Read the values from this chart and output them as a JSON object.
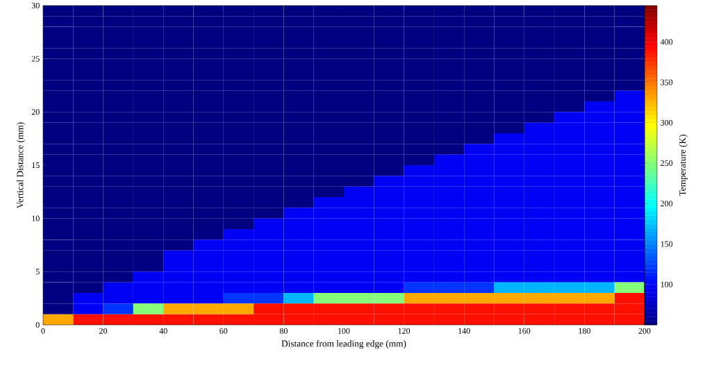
{
  "chart_data": {
    "type": "heatmap",
    "xlabel": "Distance from leading edge (mm)",
    "ylabel": "Vertical Distance (mm)",
    "clabel": "Temperature (K)",
    "x": [
      5,
      15,
      25,
      35,
      45,
      55,
      65,
      75,
      85,
      95,
      105,
      115,
      125,
      135,
      145,
      155,
      165,
      175,
      185,
      195
    ],
    "y": [
      29.5,
      28.5,
      27.5,
      26.5,
      25.5,
      24.5,
      23.5,
      22.5,
      21.5,
      20.5,
      19.5,
      18.5,
      17.5,
      16.5,
      15.5,
      14.5,
      13.5,
      12.5,
      11.5,
      10.5,
      9.5,
      8.5,
      7.5,
      6.5,
      5.5,
      4.5,
      3.5,
      2.5,
      1.5,
      0.5
    ],
    "xlim": [
      0,
      200
    ],
    "ylim": [
      0,
      30
    ],
    "xticks": [
      0,
      20,
      40,
      60,
      80,
      100,
      120,
      140,
      160,
      180,
      200
    ],
    "yticks": [
      0,
      5,
      10,
      15,
      20,
      25,
      30
    ],
    "clim": [
      50,
      445
    ],
    "cticks": [
      100,
      150,
      200,
      250,
      300,
      350,
      400
    ],
    "cells": [
      [
        50,
        50,
        50,
        50,
        50,
        50,
        50,
        50,
        50,
        50,
        50,
        50,
        50,
        50,
        50,
        50,
        50,
        50,
        50,
        50
      ],
      [
        50,
        50,
        50,
        50,
        50,
        50,
        50,
        50,
        50,
        50,
        50,
        50,
        50,
        50,
        50,
        50,
        50,
        50,
        50,
        50
      ],
      [
        50,
        50,
        50,
        50,
        50,
        50,
        50,
        50,
        50,
        50,
        50,
        50,
        50,
        50,
        50,
        50,
        50,
        50,
        50,
        50
      ],
      [
        50,
        50,
        50,
        50,
        50,
        50,
        50,
        50,
        50,
        50,
        50,
        50,
        50,
        50,
        50,
        50,
        50,
        50,
        50,
        50
      ],
      [
        50,
        50,
        50,
        50,
        50,
        50,
        50,
        50,
        50,
        50,
        50,
        50,
        50,
        50,
        50,
        50,
        50,
        50,
        50,
        50
      ],
      [
        50,
        50,
        50,
        50,
        50,
        50,
        50,
        50,
        50,
        50,
        50,
        50,
        50,
        50,
        50,
        50,
        50,
        50,
        50,
        50
      ],
      [
        50,
        50,
        50,
        50,
        50,
        50,
        50,
        50,
        50,
        50,
        50,
        50,
        50,
        50,
        50,
        50,
        50,
        50,
        50,
        50
      ],
      [
        50,
        50,
        50,
        50,
        50,
        50,
        50,
        50,
        50,
        50,
        50,
        50,
        50,
        50,
        50,
        50,
        50,
        50,
        50,
        50
      ],
      [
        50,
        50,
        50,
        50,
        50,
        50,
        50,
        50,
        50,
        50,
        50,
        50,
        50,
        50,
        50,
        50,
        50,
        50,
        50,
        95
      ],
      [
        50,
        50,
        50,
        50,
        50,
        50,
        50,
        50,
        50,
        50,
        50,
        50,
        50,
        50,
        50,
        50,
        50,
        50,
        95,
        95
      ],
      [
        50,
        50,
        50,
        50,
        50,
        50,
        50,
        50,
        50,
        50,
        50,
        50,
        50,
        50,
        50,
        50,
        50,
        95,
        95,
        95
      ],
      [
        50,
        50,
        50,
        50,
        50,
        50,
        50,
        50,
        50,
        50,
        50,
        50,
        50,
        50,
        50,
        50,
        95,
        95,
        95,
        95
      ],
      [
        50,
        50,
        50,
        50,
        50,
        50,
        50,
        50,
        50,
        50,
        50,
        50,
        50,
        50,
        50,
        95,
        95,
        95,
        95,
        95
      ],
      [
        50,
        50,
        50,
        50,
        50,
        50,
        50,
        50,
        50,
        50,
        50,
        50,
        50,
        50,
        95,
        95,
        95,
        95,
        95,
        95
      ],
      [
        50,
        50,
        50,
        50,
        50,
        50,
        50,
        50,
        50,
        50,
        50,
        50,
        50,
        95,
        95,
        95,
        95,
        95,
        95,
        95
      ],
      [
        50,
        50,
        50,
        50,
        50,
        50,
        50,
        50,
        50,
        50,
        50,
        50,
        95,
        95,
        95,
        95,
        95,
        95,
        95,
        95
      ],
      [
        50,
        50,
        50,
        50,
        50,
        50,
        50,
        50,
        50,
        50,
        50,
        95,
        95,
        95,
        95,
        95,
        95,
        95,
        95,
        95
      ],
      [
        50,
        50,
        50,
        50,
        50,
        50,
        50,
        50,
        50,
        50,
        95,
        95,
        95,
        95,
        95,
        95,
        95,
        95,
        95,
        95
      ],
      [
        50,
        50,
        50,
        50,
        50,
        50,
        50,
        50,
        50,
        95,
        95,
        95,
        95,
        95,
        95,
        95,
        95,
        95,
        95,
        95
      ],
      [
        50,
        50,
        50,
        50,
        50,
        50,
        50,
        50,
        95,
        95,
        95,
        95,
        95,
        95,
        95,
        95,
        95,
        95,
        95,
        95
      ],
      [
        50,
        50,
        50,
        50,
        50,
        50,
        50,
        95,
        95,
        95,
        95,
        95,
        95,
        95,
        95,
        95,
        95,
        95,
        95,
        95
      ],
      [
        50,
        50,
        50,
        50,
        50,
        50,
        95,
        95,
        95,
        95,
        95,
        95,
        95,
        95,
        95,
        95,
        95,
        95,
        95,
        95
      ],
      [
        50,
        50,
        50,
        50,
        50,
        95,
        95,
        95,
        95,
        95,
        95,
        95,
        95,
        95,
        95,
        95,
        95,
        95,
        95,
        95
      ],
      [
        50,
        50,
        50,
        50,
        95,
        95,
        95,
        95,
        95,
        95,
        95,
        95,
        95,
        95,
        95,
        95,
        95,
        95,
        95,
        95
      ],
      [
        50,
        50,
        50,
        50,
        95,
        95,
        95,
        95,
        95,
        95,
        95,
        95,
        95,
        95,
        95,
        95,
        95,
        95,
        95,
        95
      ],
      [
        50,
        50,
        50,
        95,
        95,
        95,
        95,
        95,
        95,
        95,
        95,
        95,
        95,
        95,
        95,
        95,
        95,
        95,
        95,
        95
      ],
      [
        50,
        50,
        95,
        95,
        95,
        95,
        95,
        95,
        95,
        95,
        95,
        95,
        120,
        120,
        120,
        170,
        170,
        170,
        170,
        250
      ],
      [
        50,
        95,
        95,
        95,
        95,
        95,
        120,
        120,
        170,
        250,
        250,
        250,
        330,
        330,
        330,
        330,
        330,
        330,
        330,
        390
      ],
      [
        50,
        95,
        120,
        250,
        330,
        330,
        330,
        390,
        390,
        390,
        390,
        390,
        390,
        390,
        390,
        390,
        390,
        390,
        390,
        390
      ],
      [
        330,
        390,
        390,
        390,
        390,
        390,
        390,
        390,
        390,
        390,
        390,
        390,
        390,
        390,
        390,
        390,
        390,
        390,
        390,
        390
      ]
    ]
  }
}
